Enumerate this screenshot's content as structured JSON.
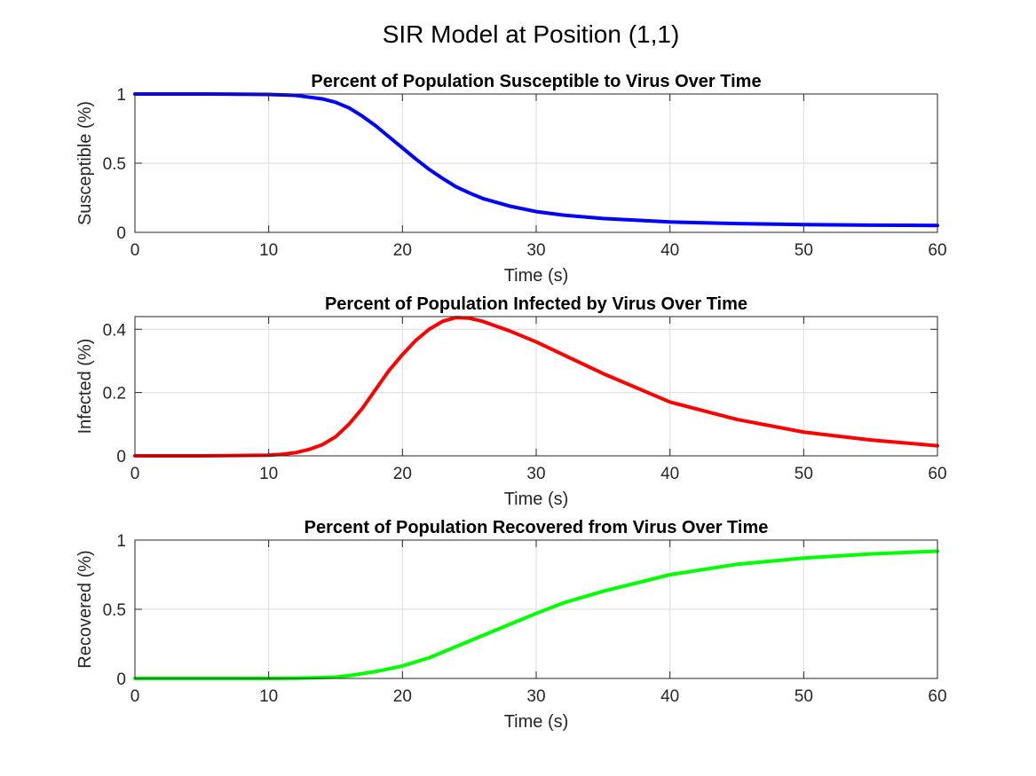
{
  "figure": {
    "suptitle": "SIR Model at Position (1,1)"
  },
  "chart_data": [
    {
      "type": "line",
      "title": "Percent of Population Susceptible to Virus Over Time",
      "xlabel": "Time (s)",
      "ylabel": "Susceptible (%)",
      "xlim": [
        0,
        60
      ],
      "ylim": [
        0,
        1
      ],
      "xticks": [
        0,
        10,
        20,
        30,
        40,
        50,
        60
      ],
      "xtick_labels": [
        "0",
        "10",
        "20",
        "30",
        "40",
        "50",
        "60"
      ],
      "yticks": [
        0,
        0.5,
        1
      ],
      "ytick_labels": [
        "0",
        "0.5",
        "1"
      ],
      "grid": true,
      "color": "#0000ff",
      "x": [
        0,
        5,
        10,
        12,
        14,
        15,
        16,
        17,
        18,
        19,
        20,
        21,
        22,
        23,
        24,
        25,
        26,
        28,
        30,
        32,
        35,
        40,
        45,
        50,
        55,
        60
      ],
      "y": [
        1.0,
        1.0,
        0.997,
        0.99,
        0.965,
        0.94,
        0.9,
        0.84,
        0.77,
        0.69,
        0.61,
        0.53,
        0.455,
        0.39,
        0.33,
        0.285,
        0.245,
        0.19,
        0.15,
        0.125,
        0.1,
        0.075,
        0.063,
        0.056,
        0.052,
        0.05
      ]
    },
    {
      "type": "line",
      "title": "Percent of Population Infected by Virus Over Time",
      "xlabel": "Time (s)",
      "ylabel": "Infected (%)",
      "xlim": [
        0,
        60
      ],
      "ylim": [
        0,
        0.44
      ],
      "xticks": [
        0,
        10,
        20,
        30,
        40,
        50,
        60
      ],
      "xtick_labels": [
        "0",
        "10",
        "20",
        "30",
        "40",
        "50",
        "60"
      ],
      "yticks": [
        0,
        0.2,
        0.4
      ],
      "ytick_labels": [
        "0",
        "0.2",
        "0.4"
      ],
      "grid": true,
      "color": "#ff0000",
      "x": [
        0,
        5,
        10,
        11,
        12,
        13,
        14,
        15,
        16,
        17,
        18,
        19,
        20,
        21,
        22,
        23,
        24,
        25,
        26,
        27,
        28,
        30,
        32,
        35,
        40,
        45,
        50,
        55,
        60
      ],
      "y": [
        0.0,
        0.0,
        0.002,
        0.005,
        0.01,
        0.02,
        0.035,
        0.06,
        0.1,
        0.15,
        0.21,
        0.27,
        0.32,
        0.365,
        0.4,
        0.425,
        0.437,
        0.435,
        0.425,
        0.41,
        0.395,
        0.36,
        0.32,
        0.26,
        0.17,
        0.115,
        0.075,
        0.05,
        0.032
      ]
    },
    {
      "type": "line",
      "title": "Percent of Population Recovered from Virus Over Time",
      "xlabel": "Time (s)",
      "ylabel": "Recovered (%)",
      "xlim": [
        0,
        60
      ],
      "ylim": [
        0,
        1
      ],
      "xticks": [
        0,
        10,
        20,
        30,
        40,
        50,
        60
      ],
      "xtick_labels": [
        "0",
        "10",
        "20",
        "30",
        "40",
        "50",
        "60"
      ],
      "yticks": [
        0,
        0.5,
        1
      ],
      "ytick_labels": [
        "0",
        "0.5",
        "1"
      ],
      "grid": true,
      "color": "#00ff00",
      "x": [
        0,
        5,
        10,
        12,
        14,
        15,
        16,
        17,
        18,
        19,
        20,
        22,
        24,
        26,
        28,
        30,
        32,
        35,
        40,
        45,
        50,
        55,
        60
      ],
      "y": [
        0.0,
        0.0,
        0.0,
        0.002,
        0.006,
        0.01,
        0.02,
        0.035,
        0.05,
        0.07,
        0.09,
        0.15,
        0.23,
        0.31,
        0.39,
        0.47,
        0.545,
        0.63,
        0.75,
        0.825,
        0.87,
        0.9,
        0.92
      ]
    }
  ]
}
